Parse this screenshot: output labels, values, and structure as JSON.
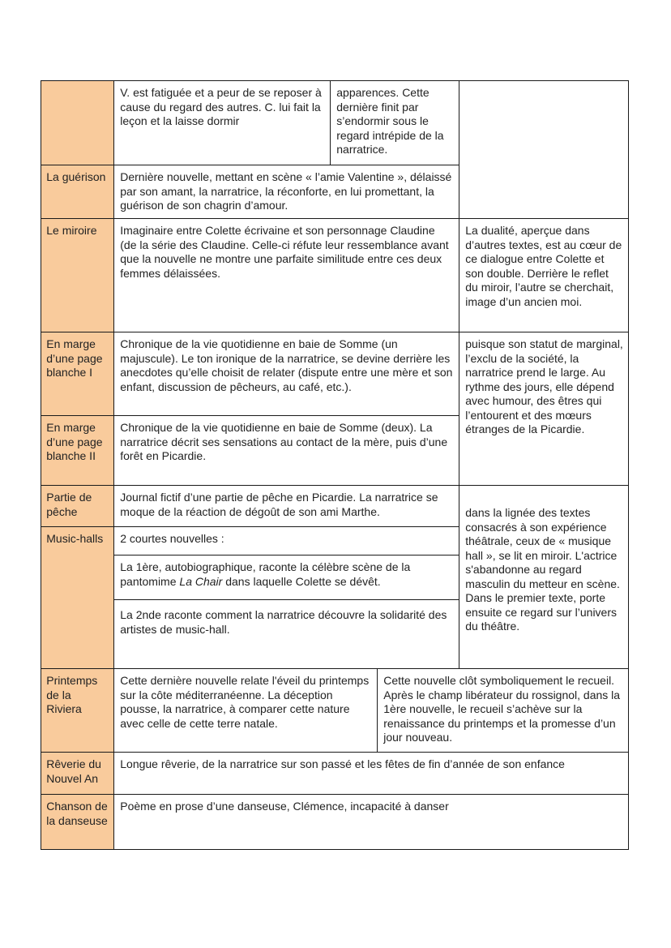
{
  "colors": {
    "header_cell": "#f9cb9c",
    "border": "#1a1a1a"
  },
  "rows": [
    {
      "title": "",
      "summary": "V. est fatiguée et a peur de se reposer à cause du regard des autres. C. lui fait la leçon et la laisse dormir",
      "extra": "apparences. Cette dernière finit par s’endormir sous le regard intrépide de la narratrice."
    },
    {
      "title": "La guérison",
      "summary": "Dernière nouvelle, mettant en scène « l’amie Valentine », délaissé par son amant, la narratrice, la réconforte, en lui promettant, la guérison de son chagrin d’amour."
    },
    {
      "title": "Le miroire",
      "summary": "Imaginaire entre Colette écrivaine et son personnage Claudine (de la série des Claudine. Celle-ci réfute leur ressemblance avant que la nouvelle ne montre une parfaite similitude entre ces deux femmes délaissées.",
      "analysis": " La dualité, aperçue dans d’autres textes, est au cœur de ce dialogue entre Colette et son double. Derrière le reflet du miroir, l’autre se cherchait, image d’un ancien moi."
    },
    {
      "title": "En marge d’une page blanche I",
      "summary": "Chronique de la vie quotidienne en baie de Somme (un majuscule). Le ton ironique de la narratrice, se devine derrière les anecdotes qu’elle choisit de relater (dispute entre une mère et son enfant, discussion de pêcheurs, au café, etc.).",
      "analysis": " puisque son statut de marginal, l’exclu de la société, la narratrice prend le large. Au rythme des jours, elle dépend avec humour, des êtres qui l’entourent et des mœurs étranges de la Picardie."
    },
    {
      "title": "En marge d’une page blanche II",
      "summary": "Chronique de la vie quotidienne en baie de Somme (deux). La narratrice décrit ses sensations au contact de la mère, puis d’une forêt en Picardie."
    },
    {
      "title": "Partie de pêche",
      "summary": "Journal fictif d’une partie de pêche en Picardie. La narratrice se moque de la réaction de dégoût de son ami Marthe.",
      "analysis": " dans la lignée des textes consacrés à son expérience théâtrale, ceux de « musique hall », se lit en miroir. L'actrice s'abandonne au regard masculin du metteur en scène. Dans le premier texte, porte ensuite ce regard sur l’univers du théâtre."
    },
    {
      "title": "Music-halls",
      "summary": "2 courtes nouvelles :",
      "part1_before": "La 1ère, autobiographique, raconte la célèbre scène de la pantomime ",
      "part1_italic": "La Chair",
      "part1_after": " dans laquelle Colette se dévêt.",
      "part2": "La 2nde raconte comment la narratrice découvre la solidarité des artistes de music-hall."
    },
    {
      "title": "Printemps de la Riviera",
      "summary": "Cette dernière nouvelle relate l'éveil du printemps sur la côte méditerranéenne. La déception pousse, la narratrice, à comparer cette nature avec celle de cette terre natale.",
      "analysis": "Cette nouvelle clôt symboliquement le recueil. Après le champ libérateur du rossignol, dans la 1ère nouvelle, le recueil s’achève sur la renaissance du printemps et la promesse d’un jour nouveau."
    },
    {
      "title": "Rêverie du Nouvel An",
      "summary": "Longue rêverie, de la narratrice sur son passé et les fêtes de fin d’année de son enfance"
    },
    {
      "title": "Chanson de la danseuse",
      "summary": "Poème en prose d’une danseuse, Clémence, incapacité à danser"
    }
  ]
}
